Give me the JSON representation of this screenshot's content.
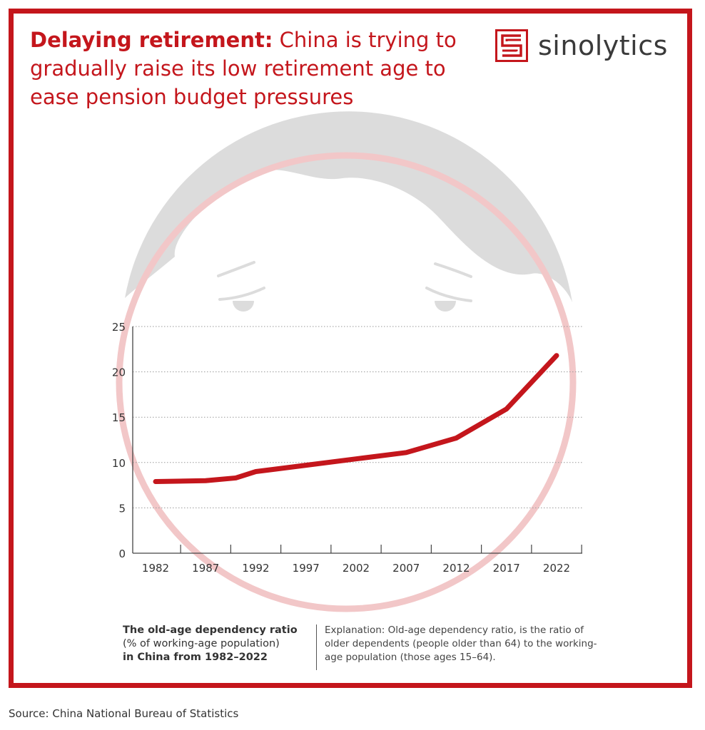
{
  "header": {
    "title_bold": "Delaying retirement:",
    "title_rest": " China is trying to gradually raise its low retirement age to ease pension budget pressures"
  },
  "logo": {
    "icon": "sinolytics-s-icon",
    "text": "sinolytics"
  },
  "colors": {
    "accent": "#c4161c",
    "line": "#c4161c",
    "illustration_gray": "#dcdcdc",
    "circle": "#f2c7c8"
  },
  "chart_data": {
    "type": "line",
    "x": [
      1982,
      1987,
      1990,
      1992,
      1997,
      2002,
      2007,
      2012,
      2017,
      2022
    ],
    "series": [
      {
        "values": [
          7.9,
          8.0,
          8.3,
          9.0,
          9.7,
          10.4,
          11.1,
          12.7,
          15.9,
          21.8
        ]
      }
    ],
    "xticks": [
      "1982",
      "1987",
      "1992",
      "1997",
      "2002",
      "2007",
      "2012",
      "2017",
      "2022"
    ],
    "xlim": [
      1982,
      2022
    ],
    "yticks": [
      "0",
      "5",
      "10",
      "15",
      "20",
      "25"
    ],
    "ylim": [
      0,
      25
    ],
    "grid": true
  },
  "caption": {
    "left_bold_1": "The old-age dependency ratio",
    "left_normal": "(% of working-age population)",
    "left_bold_2": "in China from 1982–2022",
    "explanation": "Explanation: Old-age dependency ratio, is the ratio of older dependents (people older than 64) to the working-age population (those ages 15–64)."
  },
  "source": "Source: China National Bureau of Statistics"
}
